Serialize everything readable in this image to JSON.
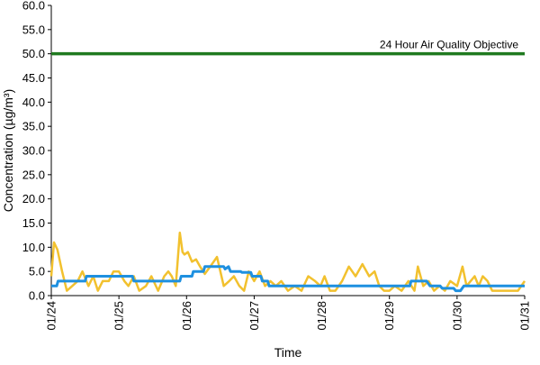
{
  "chart_data": {
    "type": "line",
    "title": "",
    "xlabel": "Time",
    "ylabel": "Concentration (µg/m³)",
    "ylim": [
      0,
      60
    ],
    "xlim": [
      "01/24",
      "01/31"
    ],
    "y_ticks": [
      "0.0",
      "5.0",
      "10.0",
      "15.0",
      "20.0",
      "25.0",
      "30.0",
      "35.0",
      "40.0",
      "45.0",
      "50.0",
      "55.0",
      "60.0"
    ],
    "x_ticks": [
      "01/24",
      "01/25",
      "01/26",
      "01/27",
      "01/28",
      "01/29",
      "01/30",
      "01/31"
    ],
    "grid": false,
    "legend": "none",
    "reference_line": {
      "y": 50,
      "label": "24 Hour Air Quality Objective",
      "color": "#1f7a1f"
    },
    "series": [
      {
        "color": "#f2c12e",
        "x_days": [
          0,
          0.04,
          0.09,
          0.16,
          0.23,
          0.31,
          0.39,
          0.46,
          0.55,
          0.62,
          0.69,
          0.76,
          0.85,
          0.92,
          1.0,
          1.08,
          1.14,
          1.22,
          1.3,
          1.4,
          1.48,
          1.58,
          1.67,
          1.73,
          1.78,
          1.84,
          1.9,
          1.94,
          1.97,
          2.02,
          2.08,
          2.14,
          2.2,
          2.27,
          2.35,
          2.45,
          2.55,
          2.63,
          2.7,
          2.78,
          2.85,
          2.92,
          3.0,
          3.08,
          3.16,
          3.24,
          3.32,
          3.4,
          3.5,
          3.6,
          3.7,
          3.8,
          3.9,
          3.98,
          4.04,
          4.12,
          4.2,
          4.3,
          4.4,
          4.5,
          4.6,
          4.7,
          4.78,
          4.85,
          4.92,
          5.0,
          5.08,
          5.18,
          5.28,
          5.37,
          5.42,
          5.5,
          5.58,
          5.66,
          5.74,
          5.82,
          5.9,
          6.0,
          6.08,
          6.14,
          6.2,
          6.26,
          6.32,
          6.38,
          6.45,
          6.52,
          6.6,
          6.7,
          6.8,
          6.9,
          7.0
        ],
        "values": [
          4.0,
          11.0,
          9.5,
          5.0,
          1.0,
          2.0,
          3.0,
          5.0,
          2.0,
          4.0,
          1.0,
          3.0,
          3.0,
          5.0,
          5.0,
          3.0,
          2.0,
          4.0,
          1.0,
          2.0,
          4.0,
          1.0,
          4.0,
          5.0,
          4.0,
          2.0,
          13.0,
          9.0,
          8.5,
          9.0,
          7.0,
          7.5,
          6.0,
          4.5,
          6.0,
          8.0,
          2.0,
          3.0,
          4.0,
          2.0,
          1.0,
          5.0,
          3.0,
          5.0,
          2.0,
          3.0,
          2.0,
          3.0,
          1.0,
          2.0,
          1.0,
          4.0,
          3.0,
          2.0,
          4.0,
          1.0,
          1.0,
          3.0,
          6.0,
          4.0,
          6.5,
          4.0,
          5.0,
          2.0,
          1.0,
          1.0,
          2.0,
          1.0,
          3.0,
          1.0,
          6.0,
          2.0,
          3.0,
          1.0,
          2.0,
          1.0,
          3.0,
          2.0,
          6.0,
          2.0,
          3.0,
          4.0,
          2.0,
          4.0,
          3.0,
          1.0,
          1.0,
          1.0,
          1.0,
          1.0,
          3.0
        ]
      },
      {
        "color": "#1e90e0",
        "x_days": [
          0,
          0.08,
          0.1,
          0.5,
          0.52,
          1.2,
          1.22,
          1.7,
          1.72,
          1.9,
          1.92,
          2.08,
          2.1,
          2.25,
          2.27,
          2.55,
          2.57,
          2.62,
          2.65,
          2.8,
          2.82,
          2.95,
          2.97,
          3.1,
          3.12,
          3.2,
          3.22,
          4.98,
          5.0,
          5.3,
          5.32,
          5.55,
          5.6,
          5.75,
          5.78,
          5.95,
          5.98,
          6.05,
          6.1,
          7.0
        ],
        "values": [
          2.0,
          2.0,
          3.0,
          3.0,
          4.0,
          4.0,
          3.0,
          3.0,
          3.0,
          3.0,
          4.0,
          4.0,
          5.0,
          5.0,
          6.0,
          6.0,
          5.5,
          6.0,
          5.0,
          5.0,
          4.8,
          4.8,
          4.0,
          4.0,
          3.0,
          3.0,
          2.0,
          2.0,
          2.0,
          2.0,
          3.0,
          3.0,
          2.0,
          2.0,
          1.5,
          1.5,
          1.0,
          1.0,
          2.0,
          2.0
        ]
      }
    ]
  }
}
